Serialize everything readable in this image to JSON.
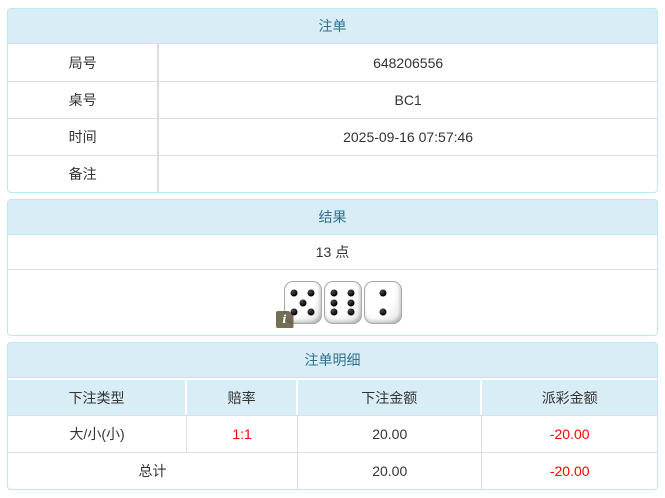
{
  "colors": {
    "header_bg": "#d9edf7",
    "header_text": "#31708f",
    "panel_border": "#bce8f1",
    "row_border": "#dddddd",
    "text": "#333333",
    "negative": "#ff0000"
  },
  "panels": {
    "bet": {
      "title": "注单",
      "rows": [
        {
          "label": "局号",
          "value": "648206556"
        },
        {
          "label": "桌号",
          "value": "BC1"
        },
        {
          "label": "时间",
          "value": "2025-09-16 07:57:46"
        },
        {
          "label": "备注",
          "value": ""
        }
      ]
    },
    "result": {
      "title": "结果",
      "points": "13 点",
      "dice": [
        5,
        6,
        2
      ],
      "info_icon": "i"
    },
    "detail": {
      "title": "注单明细",
      "columns": [
        "下注类型",
        "赔率",
        "下注金额",
        "派彩金额"
      ],
      "rows": [
        {
          "type": "大/小(小)",
          "odds": "1:1",
          "bet": "20.00",
          "payout": "-20.00"
        }
      ],
      "total": {
        "label": "总计",
        "bet": "20.00",
        "payout": "-20.00"
      }
    }
  }
}
